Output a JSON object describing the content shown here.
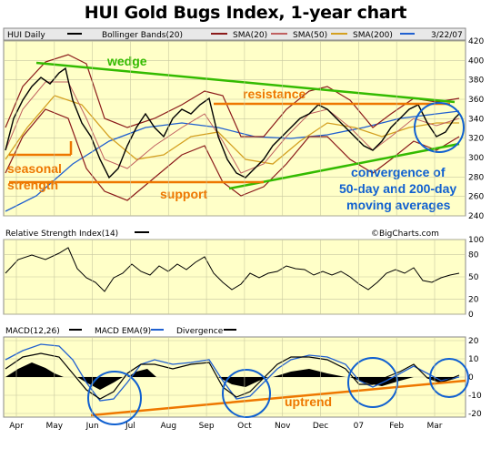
{
  "title": "HUI Gold Bugs Index, 1-year chart",
  "colors": {
    "panel_bg": "#ffffc8",
    "price": "#000000",
    "bollinger": "#8b1a1a",
    "sma20": "#c06060",
    "sma50": "#d4a020",
    "sma200": "#2060d0",
    "annotation_green": "#33bb00",
    "annotation_orange": "#ee7700",
    "annotation_blue": "#1060d0",
    "rsi": "#000000",
    "macd": "#000000",
    "macd_ema": "#2060d0",
    "divergence": "#000000"
  },
  "legend": {
    "instrument": "HUI Daily",
    "bollinger": "Bollinger Bands(20)",
    "sma20": "SMA(20)",
    "sma50": "SMA(50)",
    "sma200": "SMA(200)",
    "date": "3/22/07"
  },
  "rsi_label": "Relative Strength Index(14)",
  "watermark": "©BigCharts.com",
  "macd_legend": {
    "macd": "MACD(12,26)",
    "ema": "MACD EMA(9)",
    "divergence": "Divergence"
  },
  "annotations": {
    "wedge": "wedge",
    "resistance": "resistance",
    "seasonal": "seasonal",
    "strength": "strength",
    "support": "support",
    "convergence_line1": "convergence of",
    "convergence_line2": "50-day and 200-day",
    "convergence_line3": "moving averages",
    "uptrend": "uptrend"
  },
  "chart_data": [
    {
      "type": "line",
      "title": "HUI Gold Bugs Index, 1-year chart",
      "x_ticks": [
        "Apr",
        "May",
        "Jun",
        "Jul",
        "Aug",
        "Sep",
        "Oct",
        "Nov",
        "Dec",
        "07",
        "Feb",
        "Mar"
      ],
      "y_ticks": [
        240,
        260,
        280,
        300,
        320,
        340,
        360,
        380,
        400,
        420
      ],
      "ylim": [
        240,
        420
      ],
      "grid": true,
      "series": [
        {
          "name": "HUI Daily",
          "x": [
            "Apr",
            "May",
            "Jun",
            "Jul",
            "Aug",
            "Sep",
            "Oct",
            "Nov",
            "Dec",
            "07",
            "Feb",
            "Mar"
          ],
          "values": [
            320,
            385,
            310,
            285,
            310,
            340,
            285,
            315,
            355,
            320,
            330,
            345
          ]
        },
        {
          "name": "SMA(50)",
          "values": [
            300,
            345,
            335,
            305,
            310,
            320,
            310,
            300,
            320,
            330,
            330,
            338
          ]
        },
        {
          "name": "SMA(200)",
          "values": [
            260,
            290,
            310,
            318,
            320,
            320,
            318,
            316,
            318,
            322,
            326,
            332
          ]
        }
      ],
      "annotation_levels": {
        "resistance": 360,
        "support": 275
      }
    },
    {
      "type": "line",
      "title": "Relative Strength Index(14)",
      "y_ticks": [
        0,
        20,
        50,
        80,
        100
      ],
      "ylim": [
        0,
        100
      ],
      "series": [
        {
          "name": "RSI(14)",
          "values": [
            62,
            58,
            38,
            45,
            52,
            55,
            42,
            58,
            60,
            45,
            52,
            55
          ]
        }
      ]
    },
    {
      "type": "line",
      "title": "MACD(12,26)",
      "y_ticks": [
        -20,
        -10,
        0,
        10,
        20
      ],
      "ylim": [
        -22,
        22
      ],
      "series": [
        {
          "name": "MACD(12,26)",
          "values": [
            8,
            12,
            -15,
            -8,
            3,
            5,
            -10,
            4,
            10,
            -5,
            2,
            -1
          ]
        },
        {
          "name": "MACD EMA(9)",
          "values": [
            6,
            10,
            -8,
            -10,
            0,
            4,
            -7,
            2,
            9,
            -3,
            1,
            0
          ]
        }
      ]
    }
  ]
}
